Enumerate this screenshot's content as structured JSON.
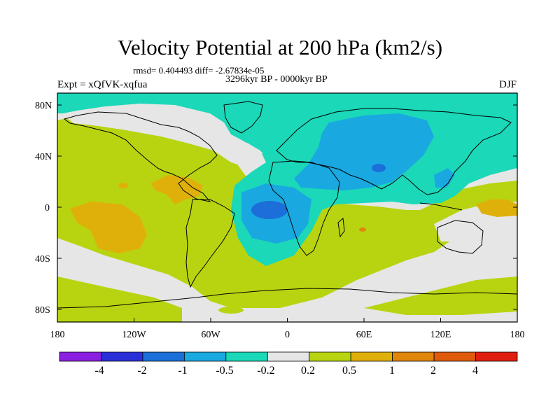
{
  "title": "Velocity Potential at 200 hPa (km2/s)",
  "stats": "rmsd= 0.404493 diff= -2.67834e-05",
  "period": "3296kyr BP - 0000kyr BP",
  "experiment": "Expt = xQfVK-xqfua",
  "season": "DJF",
  "axes": {
    "x_ticks": [
      "180",
      "120W",
      "60W",
      "0",
      "60E",
      "120E",
      "180"
    ],
    "y_ticks": [
      "80N",
      "40N",
      "0",
      "40S",
      "80S"
    ]
  },
  "colorbar": {
    "labels": [
      "-4",
      "-2",
      "-1",
      "-0.5",
      "-0.2",
      "0.2",
      "0.5",
      "1",
      "2",
      "4"
    ],
    "colors": [
      "#8a1fe0",
      "#2a30d8",
      "#1c6ed8",
      "#19a8e0",
      "#1ad8b8",
      "#e6e6e6",
      "#b8d410",
      "#e0b00a",
      "#e0860c",
      "#e05a0c",
      "#e01e10"
    ]
  },
  "colors": {
    "neutral": "#e6e6e6",
    "positive_low": "#b8d410",
    "positive_mid": "#e0b00a",
    "positive_high": "#e0860c",
    "negative_low": "#1ad8b8",
    "negative_mid": "#19a8e0",
    "negative_high": "#1c6ed8"
  }
}
